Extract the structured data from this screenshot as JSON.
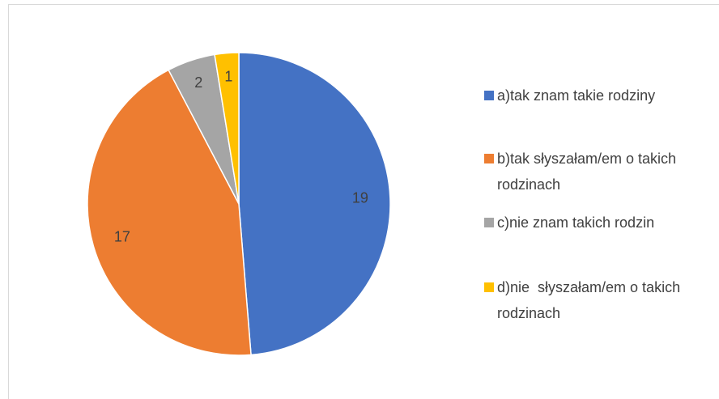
{
  "chart_data": {
    "type": "pie",
    "categories": [
      "a)tak znam takie rodziny",
      "b)tak słyszałam/em o takich rodzinach",
      "c)nie znam takich rodzin",
      "d)nie  słyszałam/em o takich rodzinach"
    ],
    "values": [
      19,
      17,
      2,
      1
    ],
    "colors": [
      "#4472c4",
      "#ed7d31",
      "#a5a5a5",
      "#ffc000"
    ],
    "legend": "right"
  }
}
